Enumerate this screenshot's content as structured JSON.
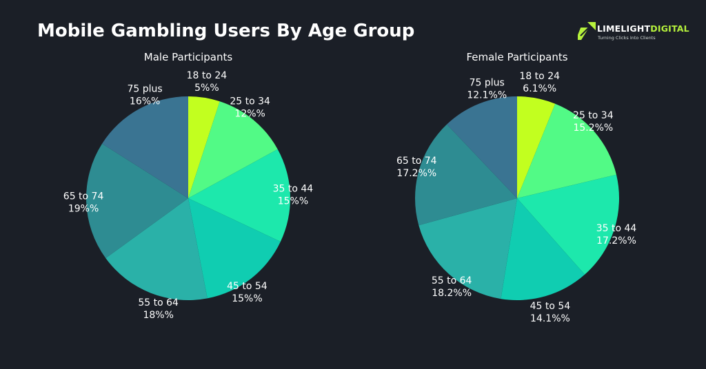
{
  "page": {
    "title": "Mobile Gambling Users By Age Group"
  },
  "logo": {
    "name_part1": "LIMELIGHT",
    "name_part2": "DIGITAL",
    "tagline": "Turning Clicks Into Clients",
    "icon": "rocket-stripes-icon",
    "accent": "#b6f23c"
  },
  "chart_data": [
    {
      "type": "pie",
      "title": "Male Participants",
      "categories": [
        "18 to 24",
        "25 to 34",
        "35 to 44",
        "45 to 54",
        "55 to 64",
        "65 to 74",
        "75 plus"
      ],
      "values": [
        5,
        12,
        15,
        15,
        18,
        19,
        16
      ],
      "value_labels": [
        "5%%",
        "12%%",
        "15%%",
        "15%%",
        "18%%",
        "19%%",
        "16%%"
      ],
      "start": "12 o'clock, clockwise"
    },
    {
      "type": "pie",
      "title": "Female Participants",
      "categories": [
        "18 to 24",
        "25 to 34",
        "35 to 44",
        "45 to 54",
        "55 to 64",
        "65 to 74",
        "75 plus"
      ],
      "values": [
        6.1,
        15.2,
        17.2,
        14.1,
        18.2,
        17.2,
        12.1
      ],
      "value_labels": [
        "6.1%%",
        "15.2%%",
        "17.2%%",
        "14.1%%",
        "18.2%%",
        "17.2%%",
        "12.1%%"
      ],
      "start": "12 o'clock, clockwise"
    }
  ],
  "colors": [
    "#c2ff1f",
    "#52fa86",
    "#1de8ac",
    "#10cdb1",
    "#2ab1a8",
    "#2e8c92",
    "#3a7492"
  ]
}
